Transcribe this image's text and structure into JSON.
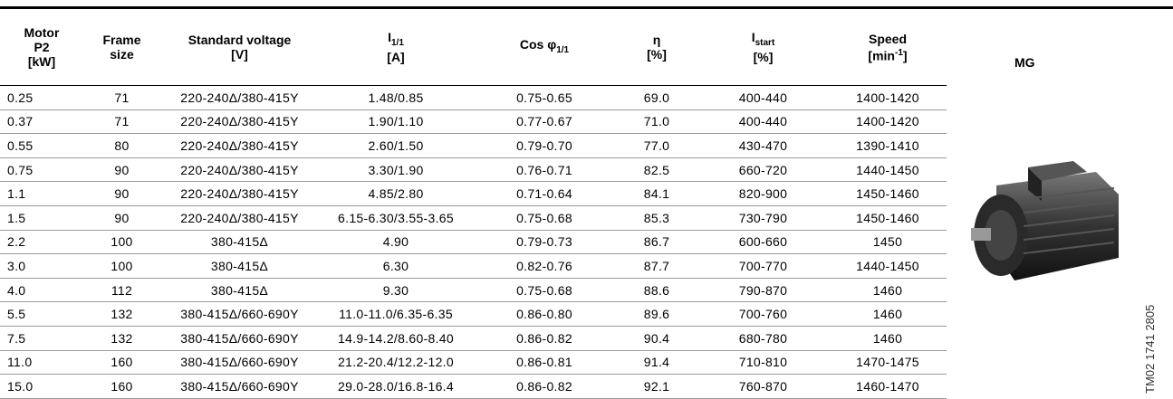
{
  "table": {
    "headers": [
      {
        "lines": [
          "Motor",
          "P2",
          "[kW]"
        ]
      },
      {
        "lines": [
          "Frame",
          "size"
        ]
      },
      {
        "lines": [
          "Standard voltage",
          "[V]"
        ]
      },
      {
        "main": "I",
        "sub": "1/1",
        "unit": "[A]"
      },
      {
        "main": "Cos φ",
        "sub": "1/1"
      },
      {
        "lines": [
          "η",
          "[%]"
        ]
      },
      {
        "main": "I",
        "sub": "start",
        "unit": "[%]"
      },
      {
        "lines": [
          "Speed"
        ],
        "unit_main": "[min",
        "sup": "-1",
        "unit_end": "]"
      }
    ],
    "rows": [
      [
        "0.25",
        "71",
        "220-240Δ/380-415Y",
        "1.48/0.85",
        "0.75-0.65",
        "69.0",
        "400-440",
        "1400-1420"
      ],
      [
        "0.37",
        "71",
        "220-240Δ/380-415Y",
        "1.90/1.10",
        "0.77-0.67",
        "71.0",
        "400-440",
        "1400-1420"
      ],
      [
        "0.55",
        "80",
        "220-240Δ/380-415Y",
        "2.60/1.50",
        "0.79-0.70",
        "77.0",
        "430-470",
        "1390-1410"
      ],
      [
        "0.75",
        "90",
        "220-240Δ/380-415Y",
        "3.30/1.90",
        "0.76-0.71",
        "82.5",
        "660-720",
        "1440-1450"
      ],
      [
        "1.1",
        "90",
        "220-240Δ/380-415Y",
        "4.85/2.80",
        "0.71-0.64",
        "84.1",
        "820-900",
        "1450-1460"
      ],
      [
        "1.5",
        "90",
        "220-240Δ/380-415Y",
        "6.15-6.30/3.55-3.65",
        "0.75-0.68",
        "85.3",
        "730-790",
        "1450-1460"
      ],
      [
        "2.2",
        "100",
        "380-415Δ",
        "4.90",
        "0.79-0.73",
        "86.7",
        "600-660",
        "1450"
      ],
      [
        "3.0",
        "100",
        "380-415Δ",
        "6.30",
        "0.82-0.76",
        "87.7",
        "700-770",
        "1440-1450"
      ],
      [
        "4.0",
        "112",
        "380-415Δ",
        "9.30",
        "0.75-0.68",
        "88.6",
        "790-870",
        "1460"
      ],
      [
        "5.5",
        "132",
        "380-415Δ/660-690Y",
        "11.0-11.0/6.35-6.35",
        "0.86-0.80",
        "89.6",
        "700-760",
        "1460"
      ],
      [
        "7.5",
        "132",
        "380-415Δ/660-690Y",
        "14.9-14.2/8.60-8.40",
        "0.86-0.82",
        "90.4",
        "680-780",
        "1460"
      ],
      [
        "11.0",
        "160",
        "380-415Δ/660-690Y",
        "21.2-20.4/12.2-12.0",
        "0.86-0.81",
        "91.4",
        "710-810",
        "1470-1475"
      ],
      [
        "15.0",
        "160",
        "380-415Δ/660-690Y",
        "29.0-28.0/16.8-16.4",
        "0.86-0.82",
        "92.1",
        "760-870",
        "1460-1470"
      ]
    ]
  },
  "image": {
    "title": "MG",
    "code": "TM02 1741 2805"
  }
}
